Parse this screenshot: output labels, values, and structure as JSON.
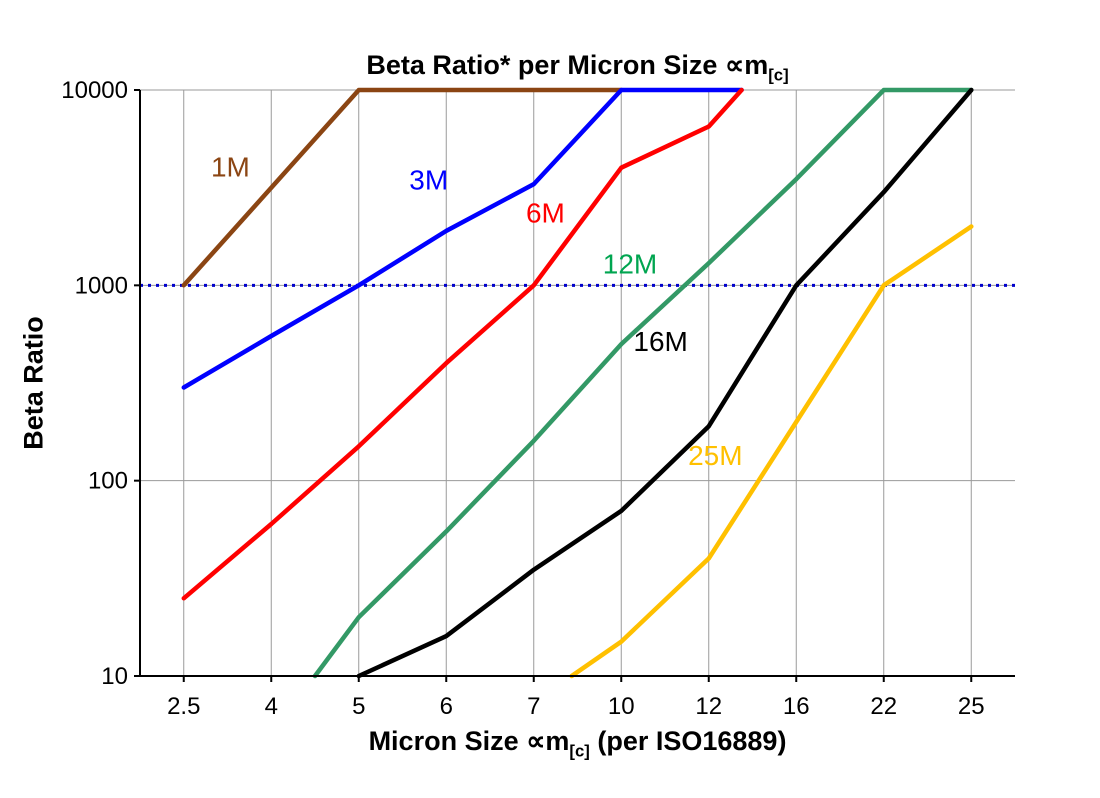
{
  "page": {
    "background": "#ffffff"
  },
  "header": {
    "title_prefix": "Beta Ratio* per Micron Size ",
    "title_symbol": "∝m",
    "title_subscript": "[c]"
  },
  "axes": {
    "x_label_prefix": "Micron Size ∝m",
    "x_label_subscript": "[c]",
    "x_label_suffix": " (per ISO16889)",
    "y_label": "Beta Ratio"
  },
  "chart_data": {
    "type": "line",
    "title": "Beta Ratio* per Micron Size ∝m[c]",
    "xlabel": "Micron Size ∝m[c] (per ISO16889)",
    "ylabel": "Beta Ratio",
    "x_categories": [
      2.5,
      4,
      5,
      6,
      7,
      10,
      12,
      16,
      22,
      25
    ],
    "x_tick_labels": [
      "2.5",
      "4",
      "5",
      "6",
      "7",
      "10",
      "12",
      "16",
      "22",
      "25"
    ],
    "y_scale": "log",
    "ylim": [
      10,
      10000
    ],
    "y_ticks": [
      10,
      100,
      1000,
      10000
    ],
    "y_tick_labels": [
      "10",
      "100",
      "1000",
      "10000"
    ],
    "grid": true,
    "grid_color": "#9a9a9a",
    "axis_color": "#000000",
    "reference_line": {
      "y": 1000,
      "color": "#0000cc",
      "style": "dotted",
      "width": 3
    },
    "series": [
      {
        "name": "1M",
        "color": "#8B4513",
        "width": 4.5,
        "points": [
          [
            2.5,
            1000
          ],
          [
            5,
            10000
          ],
          [
            10,
            10000
          ]
        ]
      },
      {
        "name": "3M",
        "color": "#0000FF",
        "width": 4.5,
        "points": [
          [
            2.5,
            300
          ],
          [
            4,
            550
          ],
          [
            5,
            1000
          ],
          [
            6,
            1900
          ],
          [
            7,
            3300
          ],
          [
            10,
            10000
          ],
          [
            13.5,
            10000
          ]
        ]
      },
      {
        "name": "6M",
        "color": "#FF0000",
        "width": 4.5,
        "points": [
          [
            2.5,
            25
          ],
          [
            4,
            60
          ],
          [
            5,
            150
          ],
          [
            6,
            400
          ],
          [
            7,
            1000
          ],
          [
            10,
            4000
          ],
          [
            12,
            6500
          ],
          [
            13.5,
            10000
          ]
        ]
      },
      {
        "name": "12M",
        "color": "#339966",
        "width": 4.5,
        "points": [
          [
            4.5,
            10
          ],
          [
            5,
            20
          ],
          [
            6,
            55
          ],
          [
            7,
            160
          ],
          [
            10,
            500
          ],
          [
            12,
            1300
          ],
          [
            16,
            3500
          ],
          [
            22,
            10000
          ],
          [
            25,
            10000
          ]
        ]
      },
      {
        "name": "16M",
        "color": "#000000",
        "width": 4.5,
        "points": [
          [
            5,
            10
          ],
          [
            6,
            16
          ],
          [
            7,
            35
          ],
          [
            10,
            70
          ],
          [
            12,
            190
          ],
          [
            16,
            1000
          ],
          [
            22,
            3000
          ],
          [
            25,
            10000
          ]
        ]
      },
      {
        "name": "25M",
        "color": "#FFC000",
        "width": 4.5,
        "points": [
          [
            8.3,
            10
          ],
          [
            10,
            15
          ],
          [
            12,
            40
          ],
          [
            16,
            200
          ],
          [
            22,
            1000
          ],
          [
            25,
            2000
          ]
        ]
      }
    ],
    "annotations": [
      {
        "text": "1M",
        "x": 3.3,
        "y": 3600,
        "color": "#8B4513"
      },
      {
        "text": "3M",
        "x": 5.8,
        "y": 3100,
        "color": "#0000FF"
      },
      {
        "text": "6M",
        "x": 7.4,
        "y": 2100,
        "color": "#FF0000"
      },
      {
        "text": "12M",
        "x": 10.2,
        "y": 1150,
        "color": "#00A550"
      },
      {
        "text": "16M",
        "x": 10.9,
        "y": 460,
        "color": "#000000"
      },
      {
        "text": "25M",
        "x": 12.3,
        "y": 120,
        "color": "#FFC000"
      }
    ],
    "legend_position": "none"
  }
}
